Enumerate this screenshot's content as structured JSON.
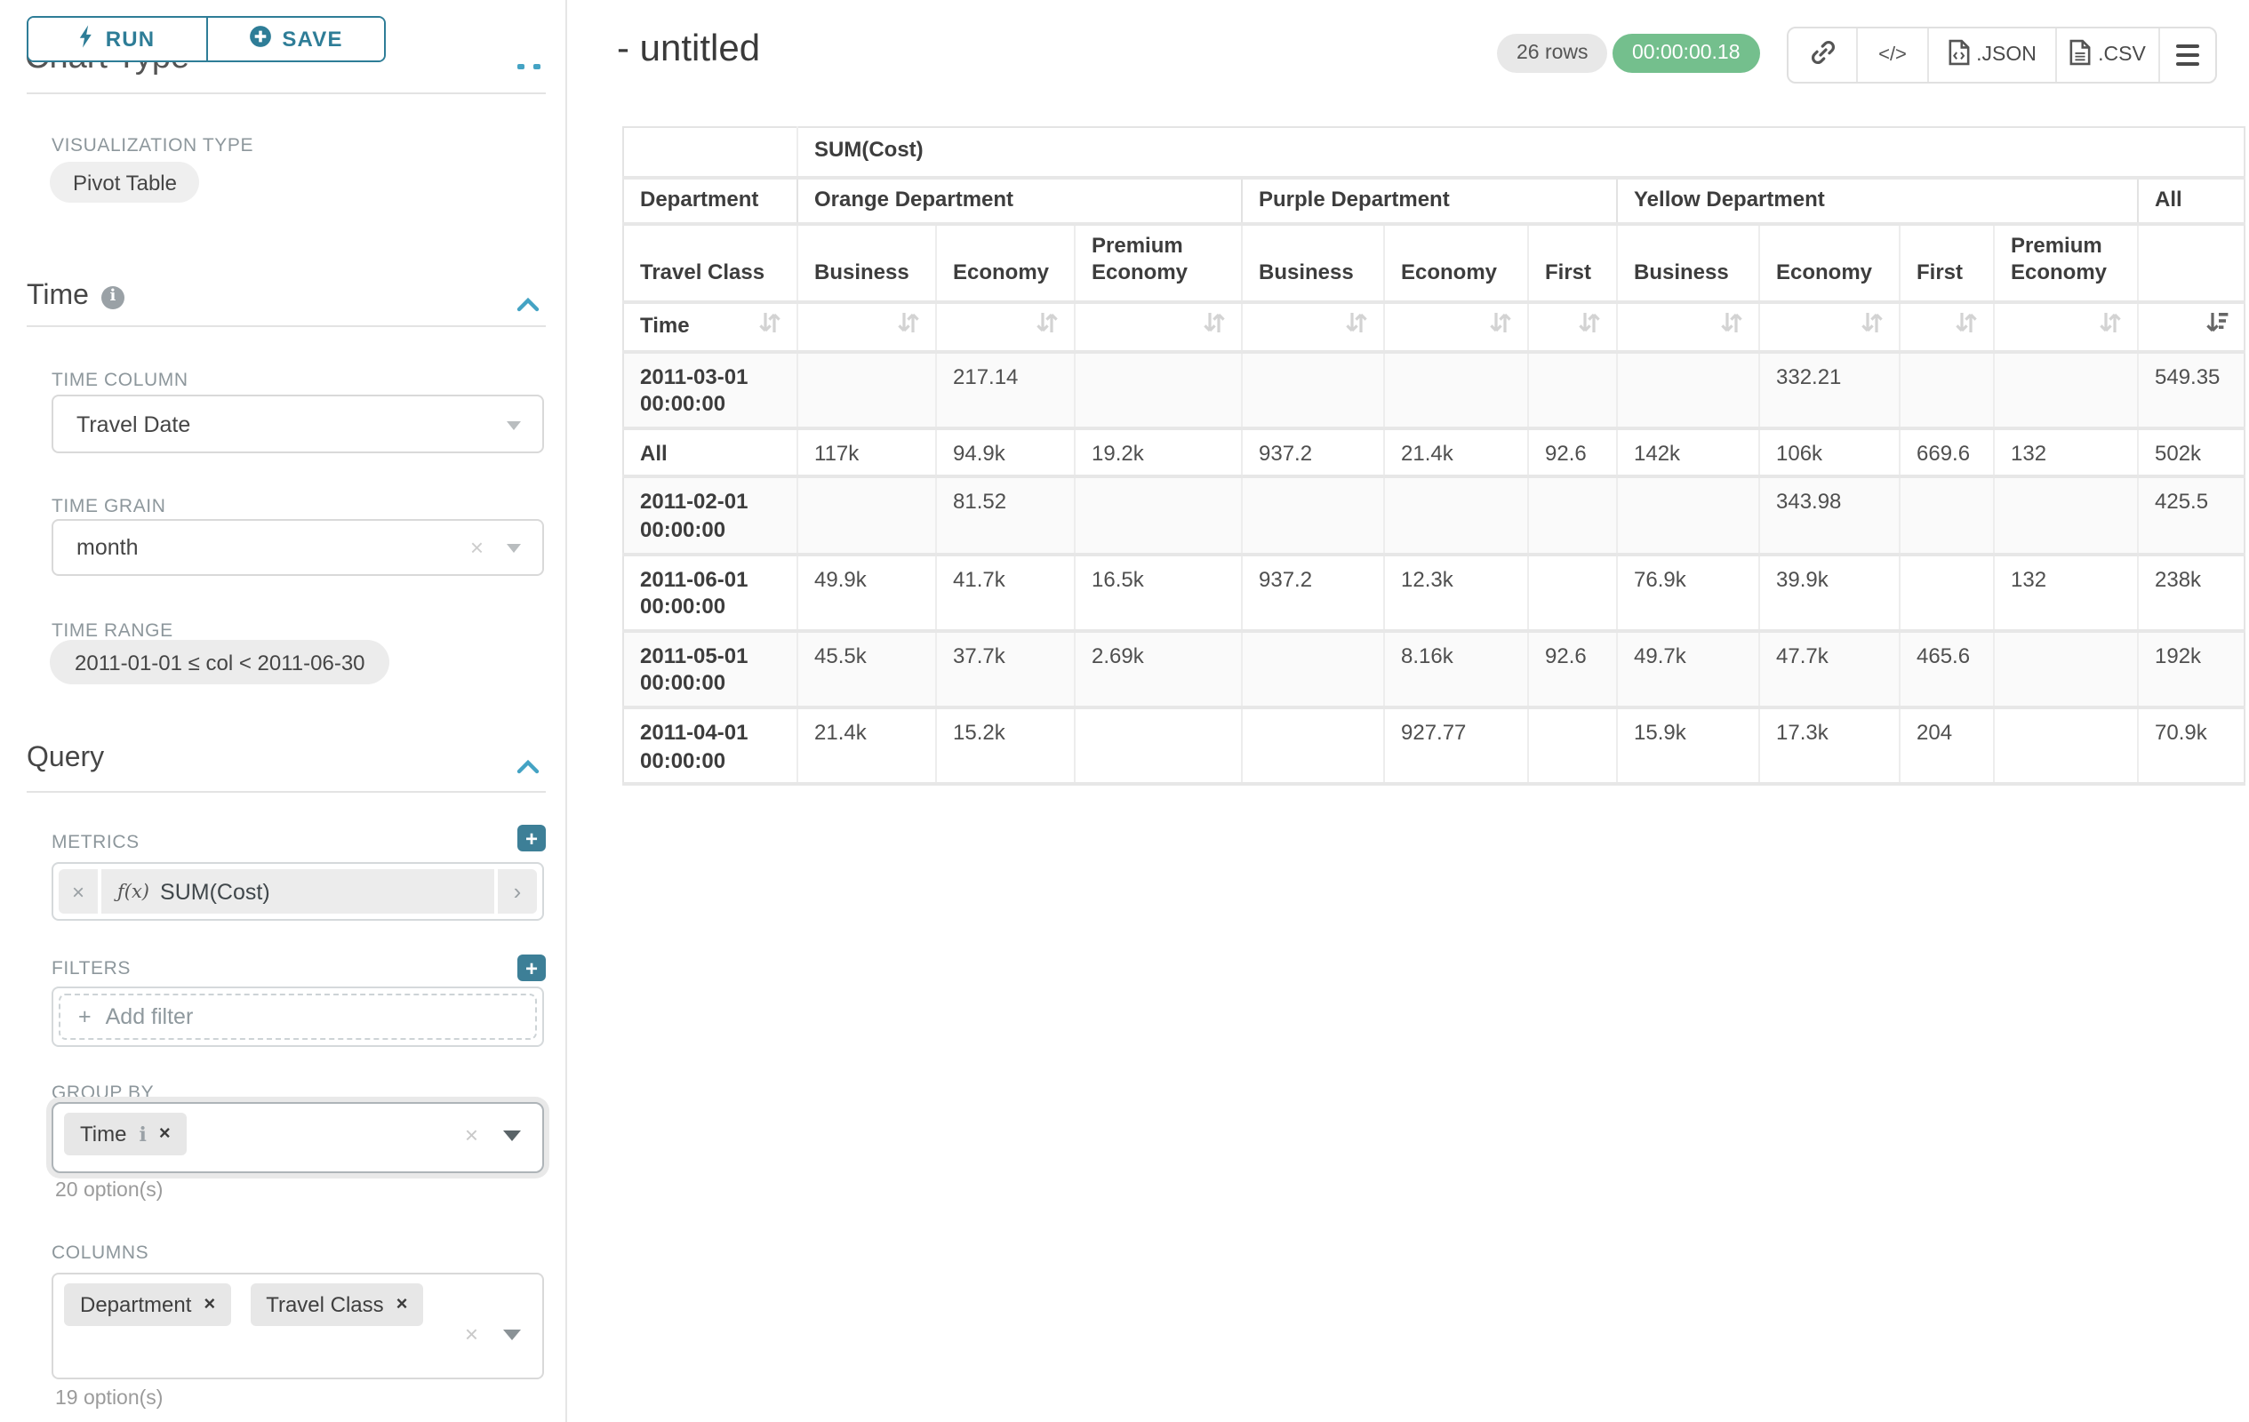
{
  "colors": {
    "accent_teal": "#2e7d97",
    "add_button_teal": "#3d7f97",
    "section_chevron_blue": "#44a3c4",
    "timer_green": "#74bf8d"
  },
  "toolbar": {
    "run": "RUN",
    "save": "SAVE"
  },
  "sidebar": {
    "chart_type": {
      "heading": "Chart Type",
      "viz_label": "VISUALIZATION TYPE",
      "viz_value": "Pivot Table"
    },
    "time": {
      "title": "Time",
      "column_label": "TIME COLUMN",
      "column_value": "Travel Date",
      "grain_label": "TIME GRAIN",
      "grain_value": "month",
      "range_label": "TIME RANGE",
      "range_value": "2011-01-01 ≤ col < 2011-06-30"
    },
    "query": {
      "title": "Query",
      "metrics_label": "METRICS",
      "metric_fx": "ƒ(x)",
      "metric_value": "SUM(Cost)",
      "filters_label": "FILTERS",
      "add_filter": "Add filter",
      "group_by_label": "GROUP BY",
      "group_by_pill": "Time",
      "group_by_hint": "20 option(s)",
      "columns_label": "COLUMNS",
      "columns_pill_1": "Department",
      "columns_pill_2": "Travel Class",
      "columns_hint": "19 option(s)"
    }
  },
  "header": {
    "title": "- untitled",
    "rows_badge": "26 rows",
    "duration_badge": "00:00:00.18",
    "json_label": ".JSON",
    "csv_label": ".CSV"
  },
  "pivot_table": {
    "metric_label": "SUM(Cost)",
    "corner_row2": "Department",
    "corner_row3": "Travel Class",
    "corner_row4": "Time",
    "groups": [
      {
        "label": "Orange Department",
        "columns": [
          "Business",
          "Economy",
          "Premium Economy"
        ]
      },
      {
        "label": "Purple Department",
        "columns": [
          "Business",
          "Economy",
          "First"
        ]
      },
      {
        "label": "Yellow Department",
        "columns": [
          "Business",
          "Economy",
          "First",
          "Premium Economy"
        ]
      },
      {
        "label": "All",
        "columns": [
          ""
        ]
      }
    ],
    "rows": [
      {
        "label": "2011-03-01 00:00:00",
        "values": [
          "",
          "217.14",
          "",
          "",
          "",
          "",
          "",
          "332.21",
          "",
          "",
          "549.35"
        ]
      },
      {
        "label": "All",
        "values": [
          "117k",
          "94.9k",
          "19.2k",
          "937.2",
          "21.4k",
          "92.6",
          "142k",
          "106k",
          "669.6",
          "132",
          "502k"
        ]
      },
      {
        "label": "2011-02-01 00:00:00",
        "values": [
          "",
          "81.52",
          "",
          "",
          "",
          "",
          "",
          "343.98",
          "",
          "",
          "425.5"
        ]
      },
      {
        "label": "2011-06-01 00:00:00",
        "values": [
          "49.9k",
          "41.7k",
          "16.5k",
          "937.2",
          "12.3k",
          "",
          "76.9k",
          "39.9k",
          "",
          "132",
          "238k"
        ]
      },
      {
        "label": "2011-05-01 00:00:00",
        "values": [
          "45.5k",
          "37.7k",
          "2.69k",
          "",
          "8.16k",
          "92.6",
          "49.7k",
          "47.7k",
          "465.6",
          "",
          "192k"
        ]
      },
      {
        "label": "2011-04-01 00:00:00",
        "values": [
          "21.4k",
          "15.2k",
          "",
          "",
          "927.77",
          "",
          "15.9k",
          "17.3k",
          "204",
          "",
          "70.9k"
        ]
      }
    ],
    "sort": {
      "active_column": "All",
      "direction": "desc"
    }
  }
}
